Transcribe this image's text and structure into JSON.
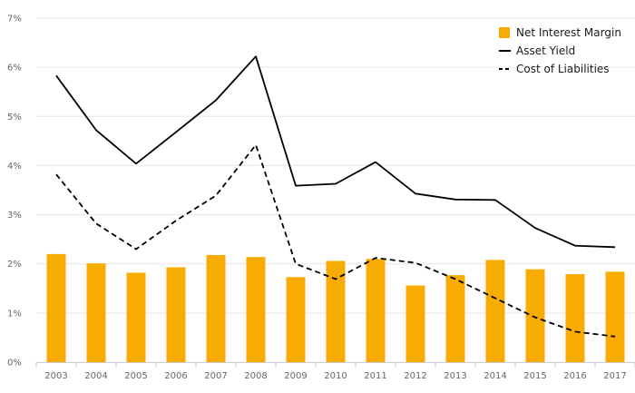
{
  "chart_data": {
    "type": "bar",
    "title": "",
    "xlabel": "",
    "ylabel": "",
    "categories": [
      "2003",
      "2004",
      "2005",
      "2006",
      "2007",
      "2008",
      "2009",
      "2010",
      "2011",
      "2012",
      "2013",
      "2014",
      "2015",
      "2016",
      "2017"
    ],
    "ylim": [
      0,
      7
    ],
    "yticks": [
      0,
      1,
      2,
      3,
      4,
      5,
      6,
      7
    ],
    "ytick_labels": [
      "0%",
      "1%",
      "2%",
      "3%",
      "4%",
      "5%",
      "6%",
      "7%"
    ],
    "grid": true,
    "legend_position": "top-right",
    "series": [
      {
        "name": "Net Interest Margin",
        "type": "bar",
        "color": "#f8ab00",
        "values": [
          2.2,
          2.01,
          1.82,
          1.93,
          2.18,
          2.14,
          1.73,
          2.06,
          2.1,
          1.56,
          1.77,
          2.08,
          1.89,
          1.79,
          1.84
        ]
      },
      {
        "name": "Asset Yield",
        "type": "line",
        "style": "solid",
        "color": "#000000",
        "values": [
          5.83,
          4.72,
          4.04,
          4.68,
          5.33,
          6.22,
          3.59,
          3.63,
          4.07,
          3.43,
          3.31,
          3.3,
          2.73,
          2.37,
          2.34
        ]
      },
      {
        "name": "Cost of Liabilities",
        "type": "line",
        "style": "dashed",
        "color": "#000000",
        "values": [
          3.82,
          2.82,
          2.3,
          2.88,
          3.39,
          4.42,
          2.0,
          1.69,
          2.12,
          2.02,
          1.69,
          1.3,
          0.91,
          0.62,
          0.52
        ]
      }
    ]
  }
}
